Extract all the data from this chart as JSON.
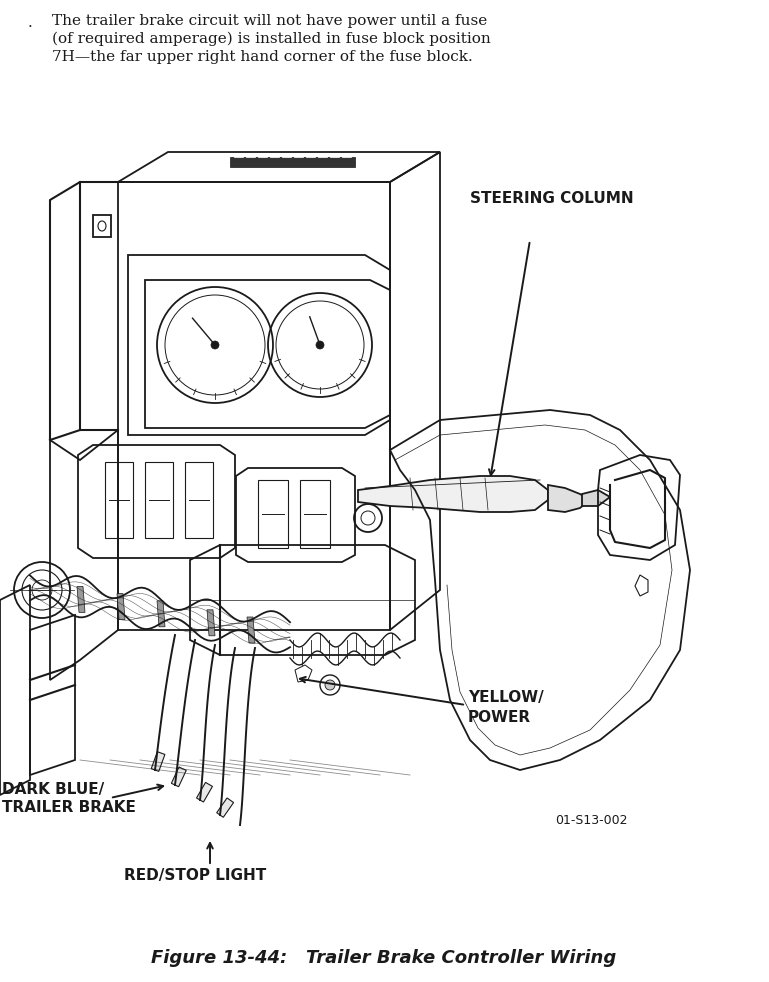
{
  "title": "Figure 13-44:   Trailer Brake Controller Wiring",
  "header_line1": "The trailer brake circuit will not have power until a fuse",
  "header_line2": "(of required amperage) is installed in fuse block position",
  "header_line3": "7H—the far upper right hand corner of the fuse block.",
  "header_bullet": ".",
  "label_steering_column": "STEERING COLUMN",
  "label_yellow_line1": "YELLOW/",
  "label_yellow_line2": "POWER",
  "label_dark_blue_line1": "DARK BLUE/",
  "label_dark_blue_line2": "TRAILER BRAKE",
  "label_red": "RED/STOP LIGHT",
  "code": "01-S13-002",
  "bg_color": "#ffffff",
  "line_color": "#1a1a1a",
  "fig_width": 7.69,
  "fig_height": 9.82,
  "dpi": 100
}
